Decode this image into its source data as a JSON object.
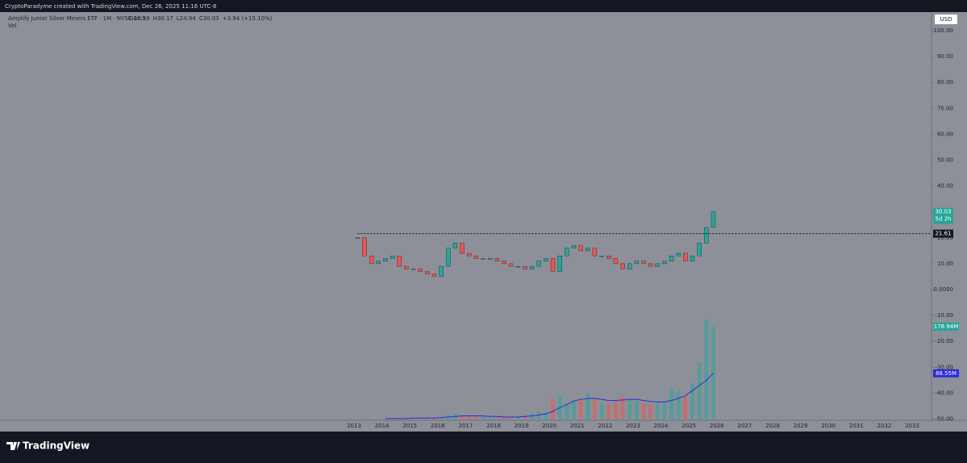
{
  "header": {
    "credit": "CryptoParadyme created with TradingView.com, Dec 26, 2025 11:16 UTC-8"
  },
  "chart_data": {
    "type": "candlestick",
    "symbol": "Amplify Junior Silver Miners ETF · 1M · NYSE Arca",
    "ohlc": [
      "O26.59",
      "H30.17",
      "L24.94",
      "C30.03",
      "+3.94 (+15.10%)"
    ],
    "volume_label": "Vol",
    "currency": "USD",
    "x": [
      "2013-Q1",
      "2013-Q2",
      "2013-Q3",
      "2013-Q4",
      "2014-Q1",
      "2014-Q2",
      "2014-Q3",
      "2014-Q4",
      "2015-Q1",
      "2015-Q2",
      "2015-Q3",
      "2015-Q4",
      "2016-Q1",
      "2016-Q2",
      "2016-Q3",
      "2016-Q4",
      "2017-Q1",
      "2017-Q2",
      "2017-Q3",
      "2017-Q4",
      "2018-Q1",
      "2018-Q2",
      "2018-Q3",
      "2018-Q4",
      "2019-Q1",
      "2019-Q2",
      "2019-Q3",
      "2019-Q4",
      "2020-Q1",
      "2020-Q2",
      "2020-Q3",
      "2020-Q4",
      "2021-Q1",
      "2021-Q2",
      "2021-Q3",
      "2021-Q4",
      "2022-Q1",
      "2022-Q2",
      "2022-Q3",
      "2022-Q4",
      "2023-Q1",
      "2023-Q2",
      "2023-Q3",
      "2023-Q4",
      "2024-Q1",
      "2024-Q2",
      "2024-Q3",
      "2024-Q4",
      "2025-Q1",
      "2025-Q2",
      "2025-Q3",
      "2025-Q4"
    ],
    "close": [
      20,
      13,
      10,
      11,
      12,
      13,
      9,
      8,
      8,
      7,
      6,
      5,
      9,
      16,
      18,
      14,
      13,
      12,
      12,
      12,
      11,
      10,
      9,
      9,
      8,
      9,
      11,
      12,
      7,
      13,
      16,
      17,
      15,
      16,
      13,
      13,
      12,
      10,
      8,
      10,
      11,
      10,
      9,
      10,
      11,
      13,
      14,
      11,
      13,
      18,
      24,
      30.03
    ],
    "volume": [
      1,
      1,
      1,
      1,
      1,
      1,
      2,
      2,
      2,
      2,
      2,
      3,
      4,
      8,
      10,
      6,
      5,
      5,
      4,
      4,
      4,
      4,
      5,
      5,
      6,
      10,
      15,
      12,
      40,
      45,
      30,
      35,
      35,
      50,
      38,
      30,
      30,
      35,
      45,
      40,
      35,
      30,
      28,
      30,
      32,
      60,
      55,
      45,
      70,
      110,
      193,
      178.94
    ],
    "volume_ma": [
      null,
      null,
      null,
      null,
      1,
      1,
      1,
      1,
      2,
      2,
      2,
      2,
      3,
      4,
      5,
      6,
      6,
      6,
      6,
      5,
      5,
      4,
      4,
      4,
      5,
      6,
      8,
      10,
      15,
      22,
      28,
      35,
      38,
      40,
      40,
      38,
      36,
      36,
      37,
      38,
      38,
      36,
      34,
      33,
      33,
      36,
      40,
      45,
      55,
      65,
      75,
      88.55
    ],
    "up_color": "#26a69a",
    "down_color": "#ef5350",
    "ma_color": "#2b2bd9",
    "ylim": [
      -50,
      100
    ],
    "yticks": [
      {
        "value": -50,
        "label": "-50.00"
      },
      {
        "value": -40,
        "label": "-40.00"
      },
      {
        "value": -30,
        "label": "-30.00"
      },
      {
        "value": -20,
        "label": "-20.00"
      },
      {
        "value": -10,
        "label": "-10.00"
      },
      {
        "value": 0,
        "label": "0.0000"
      },
      {
        "value": 10,
        "label": "10.00"
      },
      {
        "value": 20,
        "label": "20.00"
      },
      {
        "value": 30,
        "label": "30.00"
      },
      {
        "value": 40,
        "label": "40.00"
      },
      {
        "value": 50,
        "label": "50.00"
      },
      {
        "value": 60,
        "label": "60.00"
      },
      {
        "value": 70,
        "label": "70.00"
      },
      {
        "value": 80,
        "label": "80.00"
      },
      {
        "value": 90,
        "label": "90.00"
      },
      {
        "value": 100,
        "label": "100.00"
      }
    ],
    "vlim": [
      0,
      200
    ],
    "xticks": [
      2013,
      2014,
      2015,
      2016,
      2017,
      2018,
      2019,
      2020,
      2021,
      2022,
      2023,
      2024,
      2025,
      2026,
      2027,
      2028,
      2029,
      2030,
      2031,
      2032,
      2033
    ],
    "last_price": {
      "value": 30.03,
      "label": "30.03",
      "countdown": "5d 2h"
    },
    "reference_line": {
      "value": 21.61,
      "label": "21.61"
    },
    "volume_last": {
      "value": 178.94,
      "label": "178.94M"
    },
    "volume_ma_last": {
      "value": 88.55,
      "label": "88.55M"
    }
  },
  "footer": {
    "brand": "TradingView"
  }
}
